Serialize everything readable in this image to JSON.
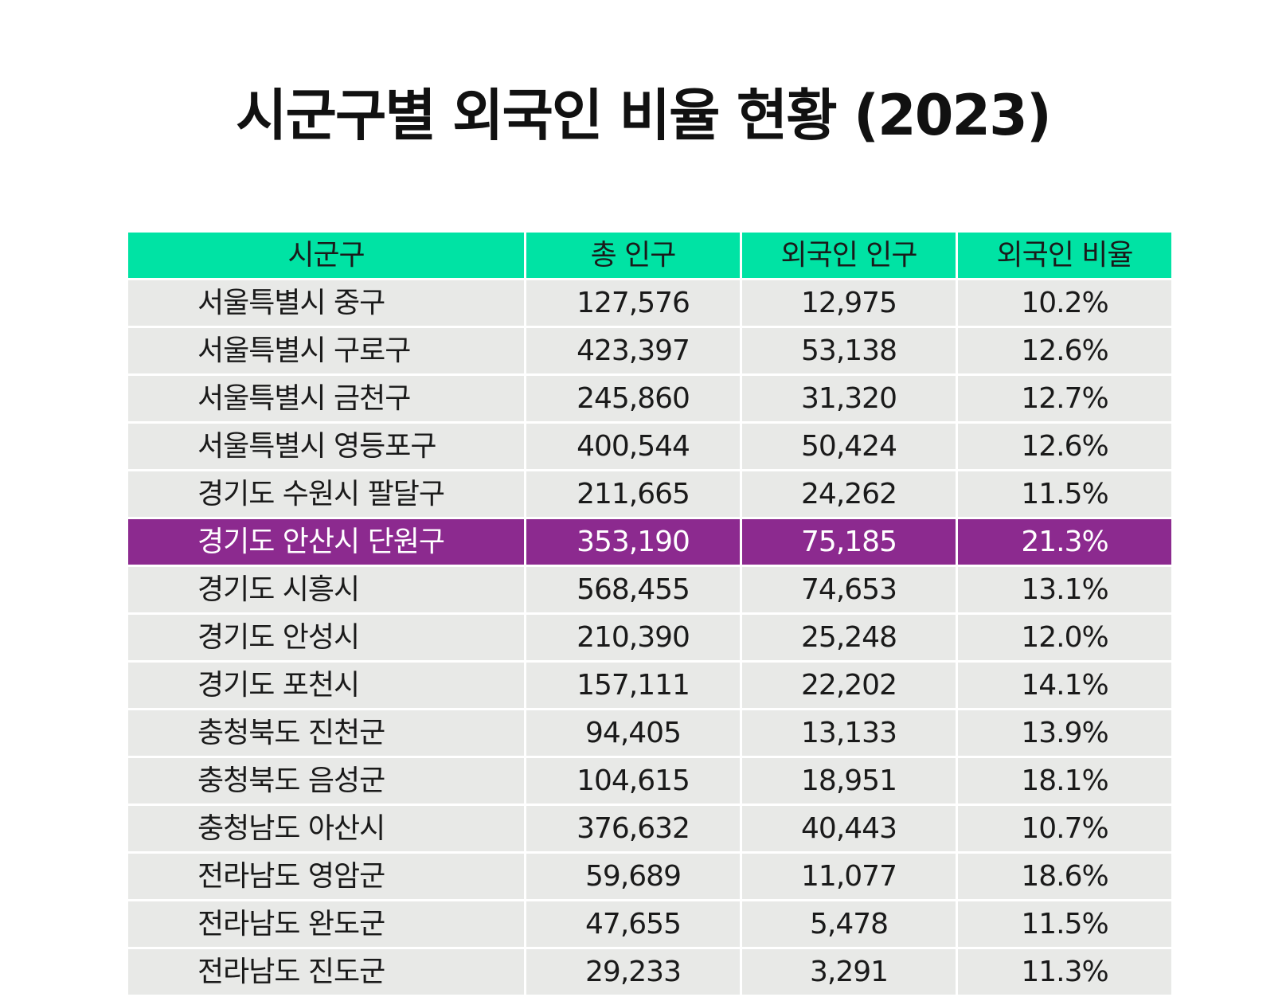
{
  "title": "시군구별 외국인 비율 현황 (2023)",
  "colors": {
    "header_bg": "#00e3a4",
    "row_bg": "#e8e9e7",
    "highlight_bg": "#8c2a8f",
    "highlight_text": "#ffffff"
  },
  "chart_data": {
    "type": "table",
    "title": "시군구별 외국인 비율 현황 (2023)",
    "columns": [
      "시군구",
      "총 인구",
      "외국인 인구",
      "외국인 비율"
    ],
    "highlighted_row": "경기도 안산시 단원구",
    "rows": [
      [
        "서울특별시 중구",
        "127,576",
        "12,975",
        "10.2%"
      ],
      [
        "서울특별시 구로구",
        "423,397",
        "53,138",
        "12.6%"
      ],
      [
        "서울특별시 금천구",
        "245,860",
        "31,320",
        "12.7%"
      ],
      [
        "서울특별시 영등포구",
        "400,544",
        "50,424",
        "12.6%"
      ],
      [
        "경기도 수원시 팔달구",
        "211,665",
        "24,262",
        "11.5%"
      ],
      [
        "경기도 안산시 단원구",
        "353,190",
        "75,185",
        "21.3%"
      ],
      [
        "경기도 시흥시",
        "568,455",
        "74,653",
        "13.1%"
      ],
      [
        "경기도 안성시",
        "210,390",
        "25,248",
        "12.0%"
      ],
      [
        "경기도 포천시",
        "157,111",
        "22,202",
        "14.1%"
      ],
      [
        "충청북도 진천군",
        "94,405",
        "13,133",
        "13.9%"
      ],
      [
        "충청북도 음성군",
        "104,615",
        "18,951",
        "18.1%"
      ],
      [
        "충청남도 아산시",
        "376,632",
        "40,443",
        "10.7%"
      ],
      [
        "전라남도 영암군",
        "59,689",
        "11,077",
        "18.6%"
      ],
      [
        "전라남도 완도군",
        "47,655",
        "5,478",
        "11.5%"
      ],
      [
        "전라남도 진도군",
        "29,233",
        "3,291",
        "11.3%"
      ]
    ]
  }
}
